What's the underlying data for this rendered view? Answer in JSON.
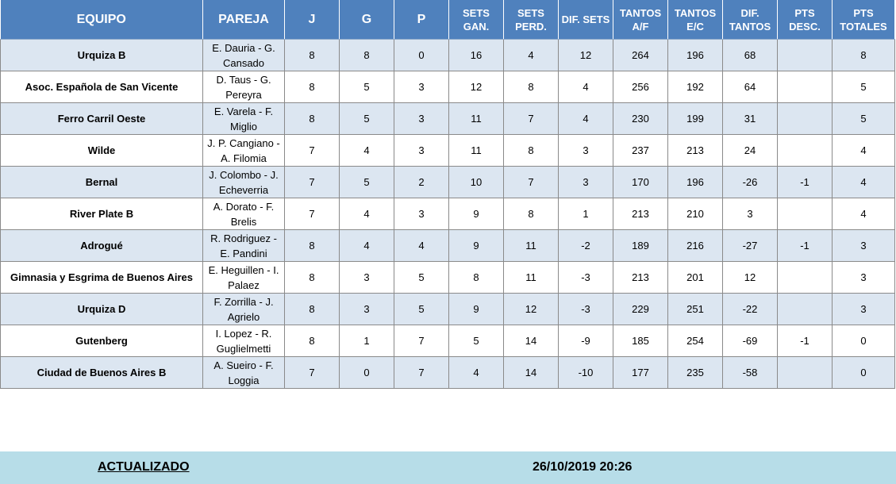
{
  "header": {
    "equipo": "EQUIPO",
    "pareja": "PAREJA",
    "j": "J",
    "g": "G",
    "p": "P",
    "sets_gan": "SETS GAN.",
    "sets_perd": "SETS PERD.",
    "dif_sets": "DIF. SETS",
    "tantos_af": "TANTOS A/F",
    "tantos_ec": "TANTOS E/C",
    "dif_tantos": "DIF. TANTOS",
    "pts_desc": "PTS DESC.",
    "pts_totales": "PTS TOTALES"
  },
  "rows": [
    {
      "equipo": "Urquiza B",
      "pareja": "E. Dauria - G. Cansado",
      "j": "8",
      "g": "8",
      "p": "0",
      "sets_gan": "16",
      "sets_perd": "4",
      "dif_sets": "12",
      "tantos_af": "264",
      "tantos_ec": "196",
      "dif_tantos": "68",
      "pts_desc": "",
      "pts_totales": "8"
    },
    {
      "equipo": "Asoc. Española de San Vicente",
      "pareja": "D. Taus - G. Pereyra",
      "j": "8",
      "g": "5",
      "p": "3",
      "sets_gan": "12",
      "sets_perd": "8",
      "dif_sets": "4",
      "tantos_af": "256",
      "tantos_ec": "192",
      "dif_tantos": "64",
      "pts_desc": "",
      "pts_totales": "5"
    },
    {
      "equipo": "Ferro Carril Oeste",
      "pareja": "E. Varela - F. Miglio",
      "j": "8",
      "g": "5",
      "p": "3",
      "sets_gan": "11",
      "sets_perd": "7",
      "dif_sets": "4",
      "tantos_af": "230",
      "tantos_ec": "199",
      "dif_tantos": "31",
      "pts_desc": "",
      "pts_totales": "5"
    },
    {
      "equipo": "Wilde",
      "pareja": "J. P. Cangiano - A. Filomia",
      "j": "7",
      "g": "4",
      "p": "3",
      "sets_gan": "11",
      "sets_perd": "8",
      "dif_sets": "3",
      "tantos_af": "237",
      "tantos_ec": "213",
      "dif_tantos": "24",
      "pts_desc": "",
      "pts_totales": "4"
    },
    {
      "equipo": "Bernal",
      "pareja": "J. Colombo - J. Echeverria",
      "j": "7",
      "g": "5",
      "p": "2",
      "sets_gan": "10",
      "sets_perd": "7",
      "dif_sets": "3",
      "tantos_af": "170",
      "tantos_ec": "196",
      "dif_tantos": "-26",
      "pts_desc": "-1",
      "pts_totales": "4"
    },
    {
      "equipo": "River Plate B",
      "pareja": "A. Dorato - F. Brelis",
      "j": "7",
      "g": "4",
      "p": "3",
      "sets_gan": "9",
      "sets_perd": "8",
      "dif_sets": "1",
      "tantos_af": "213",
      "tantos_ec": "210",
      "dif_tantos": "3",
      "pts_desc": "",
      "pts_totales": "4"
    },
    {
      "equipo": "Adrogué",
      "pareja": "R. Rodriguez - E. Pandini",
      "j": "8",
      "g": "4",
      "p": "4",
      "sets_gan": "9",
      "sets_perd": "11",
      "dif_sets": "-2",
      "tantos_af": "189",
      "tantos_ec": "216",
      "dif_tantos": "-27",
      "pts_desc": "-1",
      "pts_totales": "3"
    },
    {
      "equipo": "Gimnasia y Esgrima de Buenos Aires",
      "pareja": "E. Heguillen - I. Palaez",
      "j": "8",
      "g": "3",
      "p": "5",
      "sets_gan": "8",
      "sets_perd": "11",
      "dif_sets": "-3",
      "tantos_af": "213",
      "tantos_ec": "201",
      "dif_tantos": "12",
      "pts_desc": "",
      "pts_totales": "3"
    },
    {
      "equipo": "Urquiza D",
      "pareja": "F. Zorrilla - J. Agrielo",
      "j": "8",
      "g": "3",
      "p": "5",
      "sets_gan": "9",
      "sets_perd": "12",
      "dif_sets": "-3",
      "tantos_af": "229",
      "tantos_ec": "251",
      "dif_tantos": "-22",
      "pts_desc": "",
      "pts_totales": "3"
    },
    {
      "equipo": "Gutenberg",
      "pareja": "I. Lopez - R. Guglielmetti",
      "j": "8",
      "g": "1",
      "p": "7",
      "sets_gan": "5",
      "sets_perd": "14",
      "dif_sets": "-9",
      "tantos_af": "185",
      "tantos_ec": "254",
      "dif_tantos": "-69",
      "pts_desc": "-1",
      "pts_totales": "0"
    },
    {
      "equipo": "Ciudad de Buenos Aires B",
      "pareja": "A. Sueiro - F. Loggia",
      "j": "7",
      "g": "0",
      "p": "7",
      "sets_gan": "4",
      "sets_perd": "14",
      "dif_sets": "-10",
      "tantos_af": "177",
      "tantos_ec": "235",
      "dif_tantos": "-58",
      "pts_desc": "",
      "pts_totales": "0"
    }
  ],
  "footer": {
    "label": "ACTUALIZADO",
    "timestamp": "26/10/2019 20:26"
  }
}
